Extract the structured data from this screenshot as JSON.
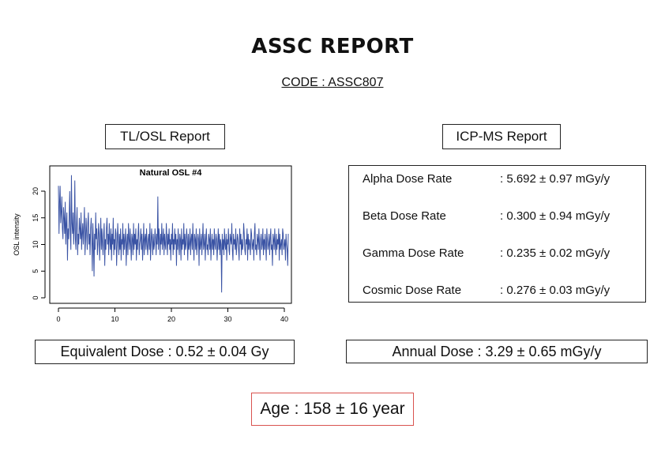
{
  "report": {
    "title": "ASSC REPORT",
    "code": "CODE : ASSC807"
  },
  "tl_osl": {
    "label": "TL/OSL Report"
  },
  "icp_ms": {
    "label": "ICP-MS Report",
    "rates": [
      {
        "name": "Alpha Dose Rate",
        "value": ": 5.692 ± 0.97 mGy/y"
      },
      {
        "name": "Beta Dose Rate",
        "value": ": 0.300 ± 0.94 mGy/y"
      },
      {
        "name": "Gamma Dose Rate",
        "value": ": 0.235 ± 0.02 mGy/y"
      },
      {
        "name": "Cosmic Dose Rate",
        "value": ": 0.276 ± 0.03 mGy/y"
      }
    ]
  },
  "equivalent_dose": "Equivalent Dose : 0.52 ± 0.04 Gy",
  "annual_dose": "Annual Dose : 3.29 ± 0.65 mGy/y",
  "age": "Age : 158 ± 16 year",
  "colors": {
    "series": "#3a53a4",
    "age_border": "#d9534f"
  },
  "chart_data": {
    "type": "line",
    "title": "Natural OSL #4",
    "xlabel": "",
    "ylabel": "OSL intensity",
    "xlim": [
      0,
      40
    ],
    "ylim": [
      0,
      24
    ],
    "xticks": [
      "0",
      "10",
      "20",
      "30",
      "40"
    ],
    "yticks": [
      "0",
      "5",
      "10",
      "15",
      "20"
    ],
    "x_step": 0.1,
    "series": [
      {
        "values": [
          21,
          12,
          18,
          21,
          14,
          16,
          19,
          13,
          11,
          17,
          15,
          12,
          18,
          10,
          14,
          16,
          7,
          13,
          11,
          15,
          20,
          12,
          9,
          23,
          14,
          12,
          16,
          10,
          13,
          22,
          11,
          9,
          14,
          17,
          8,
          12,
          10,
          15,
          13,
          11,
          16,
          9,
          12,
          14,
          10,
          13,
          17,
          8,
          11,
          15,
          12,
          9,
          14,
          16,
          10,
          12,
          8,
          13,
          15,
          11,
          5,
          14,
          10,
          4,
          12,
          9,
          16,
          11,
          13,
          8,
          10,
          14,
          12,
          7,
          11,
          15,
          9,
          13,
          10,
          8,
          12,
          14,
          6,
          11,
          9,
          13,
          15,
          10,
          12,
          8,
          14,
          11,
          9,
          13,
          7,
          12,
          10,
          15,
          8,
          11,
          9,
          13,
          12,
          6,
          10,
          14,
          11,
          8,
          12,
          9,
          13,
          7,
          11,
          10,
          14,
          8,
          12,
          9,
          11,
          13,
          6,
          10,
          12,
          8,
          14,
          11,
          9,
          13,
          10,
          7,
          12,
          11,
          8,
          14,
          9,
          12,
          10,
          13,
          7,
          11,
          9,
          12,
          14,
          8,
          10,
          11,
          13,
          9,
          12,
          7,
          10,
          14,
          8,
          11,
          12,
          9,
          13,
          10,
          8,
          11,
          12,
          9,
          14,
          7,
          10,
          13,
          11,
          8,
          12,
          9,
          10,
          13,
          11,
          8,
          12,
          10,
          19,
          9,
          13,
          11,
          8,
          12,
          10,
          14,
          9,
          11,
          13,
          8,
          12,
          10,
          9,
          14,
          11,
          8,
          12,
          10,
          13,
          9,
          11,
          7,
          12,
          10,
          14,
          8,
          11,
          9,
          13,
          10,
          12,
          6,
          11,
          9,
          13,
          10,
          8,
          12,
          11,
          7,
          13,
          9,
          11,
          10,
          14,
          8,
          12,
          9,
          10,
          13,
          11,
          7,
          12,
          9,
          10,
          13,
          8,
          11,
          12,
          9,
          14,
          10,
          7,
          12,
          11,
          9,
          13,
          8,
          10,
          12,
          11,
          6,
          13,
          9,
          10,
          12,
          8,
          11,
          14,
          9,
          10,
          12,
          7,
          11,
          13,
          9,
          10,
          8,
          12,
          11,
          9,
          13,
          7,
          10,
          12,
          9,
          11,
          8,
          13,
          10,
          9,
          12,
          11,
          7,
          10,
          13,
          9,
          12,
          8,
          11,
          10,
          1,
          12,
          9,
          11,
          8,
          13,
          10,
          9,
          12,
          7,
          11,
          10,
          13,
          9,
          8,
          12,
          11,
          10,
          14,
          9,
          7,
          12,
          10,
          11,
          9,
          13,
          8,
          10,
          12,
          11,
          9,
          7,
          13,
          10,
          12,
          8,
          11,
          9,
          10,
          14,
          12,
          9,
          8,
          11,
          10,
          13,
          7,
          12,
          9,
          11,
          10,
          8,
          13,
          12,
          9,
          10,
          11,
          7,
          12,
          14,
          9,
          10,
          8,
          12,
          11,
          9,
          13,
          10,
          7,
          11,
          12,
          9,
          10,
          13,
          8,
          11,
          9,
          12,
          10,
          7,
          13,
          11,
          9,
          10,
          12,
          8,
          11,
          13,
          9,
          10,
          6,
          12,
          11,
          9,
          13,
          10,
          8,
          12,
          9,
          11,
          10,
          13,
          7,
          12,
          9,
          10,
          11,
          8,
          13,
          12,
          9,
          10,
          11,
          7,
          12,
          10,
          9,
          6,
          12
        ]
      }
    ]
  }
}
